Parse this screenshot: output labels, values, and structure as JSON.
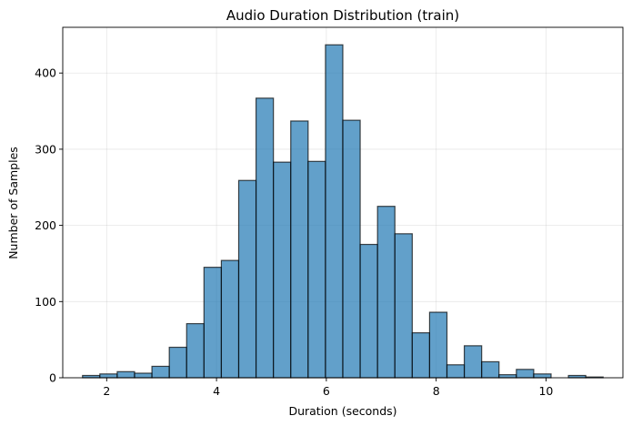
{
  "chart_data": {
    "type": "bar",
    "title": "Audio Duration Distribution (train)",
    "xlabel": "Duration (seconds)",
    "ylabel": "Number of Samples",
    "xlim": [
      1.2,
      11.4
    ],
    "ylim": [
      0,
      460
    ],
    "xticks": [
      2,
      4,
      6,
      8,
      10
    ],
    "yticks": [
      0,
      100,
      200,
      300,
      400
    ],
    "grid": true,
    "color": "#1f77b4",
    "edge_color": "#000000",
    "bins": {
      "start": 1.56,
      "width": 0.316,
      "counts": [
        3,
        5,
        8,
        6,
        15,
        40,
        71,
        145,
        154,
        259,
        367,
        283,
        337,
        284,
        437,
        338,
        175,
        225,
        189,
        59,
        86,
        17,
        42,
        21,
        4,
        11,
        5,
        0,
        3,
        1
      ]
    }
  }
}
